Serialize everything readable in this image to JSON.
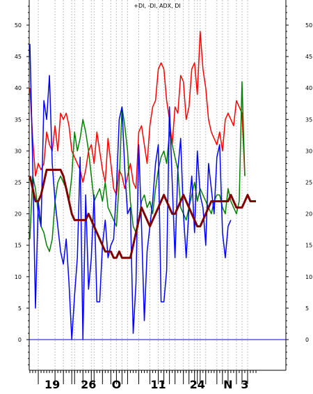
{
  "chart_data": {
    "type": "line",
    "title": "+DI, -DI, ADX, DI",
    "ylim": [
      -5,
      53
    ],
    "y_ticks": [
      0,
      5,
      10,
      15,
      20,
      25,
      30,
      35,
      40,
      45,
      50
    ],
    "grid": "vertical dotted",
    "x_labels": [
      {
        "label": "19",
        "index": 8
      },
      {
        "label": "26",
        "index": 21
      },
      {
        "label": "O",
        "index": 31
      },
      {
        "label": "11",
        "index": 46
      },
      {
        "label": "24",
        "index": 60
      },
      {
        "label": "N",
        "index": 71
      },
      {
        "label": "3",
        "index": 77
      }
    ],
    "zero_line_color": "#0000cc",
    "series": [
      {
        "color": "#ff0000",
        "role": "+DI",
        "values": [
          40,
          32,
          26,
          28,
          27,
          28,
          33,
          31,
          30,
          34,
          30,
          36,
          35,
          36,
          34,
          30,
          29,
          28,
          27,
          25,
          27,
          30,
          31,
          28,
          33,
          30,
          27,
          25,
          32,
          28,
          24,
          23,
          27,
          26,
          24,
          26,
          28,
          25,
          24,
          33,
          34,
          31,
          28,
          34,
          37,
          38,
          43,
          44,
          43,
          38,
          35,
          31,
          37,
          36,
          42,
          41,
          35,
          37,
          43,
          44,
          39,
          49,
          43,
          40,
          35,
          33,
          32,
          31,
          33,
          30,
          35,
          36,
          35,
          34,
          38,
          37,
          36,
          26
        ]
      },
      {
        "color": "#008000",
        "role": "-DI",
        "values": [
          16,
          26,
          24,
          20,
          18,
          17,
          15,
          14,
          16,
          22,
          25,
          26,
          25,
          24,
          22,
          26,
          33,
          30,
          32,
          35,
          33,
          30,
          26,
          22,
          23,
          24,
          22,
          25,
          21,
          20,
          19,
          18,
          25,
          37,
          34,
          30,
          22,
          18,
          17,
          19,
          22,
          23,
          21,
          22,
          20,
          24,
          27,
          29,
          30,
          28,
          33,
          31,
          29,
          27,
          21,
          20,
          19,
          21,
          23,
          25,
          22,
          24,
          23,
          22,
          21,
          20,
          22,
          23,
          23,
          21,
          20,
          24,
          22,
          21,
          20,
          22,
          41,
          26
        ]
      },
      {
        "color": "#0000ff",
        "role": "DI",
        "values": [
          47,
          28,
          5,
          22,
          18,
          38,
          35,
          42,
          28,
          22,
          18,
          14,
          12,
          16,
          9,
          0,
          7,
          13,
          29,
          0,
          23,
          8,
          13,
          23,
          6,
          6,
          15,
          19,
          13,
          15,
          16,
          24,
          35,
          37,
          27,
          20,
          21,
          1,
          9,
          31,
          18,
          3,
          14,
          18,
          22,
          28,
          31,
          6,
          6,
          11,
          37,
          25,
          13,
          27,
          32,
          20,
          13,
          21,
          26,
          17,
          30,
          23,
          21,
          15,
          28,
          24,
          20,
          29,
          31,
          17,
          13,
          18,
          19
        ]
      },
      {
        "color": "#800000",
        "role": "ADX",
        "values": [
          26,
          24,
          22,
          22,
          23,
          25,
          27,
          27,
          27,
          27,
          27,
          27,
          26,
          24,
          22,
          20,
          19,
          19,
          19,
          19,
          19,
          20,
          19,
          18,
          17,
          16,
          15,
          14,
          14,
          14,
          13,
          13,
          14,
          13,
          13,
          13,
          13,
          15,
          17,
          19,
          21,
          20,
          19,
          18,
          19,
          20,
          21,
          22,
          23,
          22,
          21,
          20,
          20,
          21,
          22,
          23,
          22,
          21,
          20,
          19,
          18,
          18,
          19,
          20,
          21,
          22,
          22,
          22,
          22,
          22,
          22,
          22,
          23,
          22,
          21,
          21,
          21,
          22,
          23,
          22,
          22,
          22
        ]
      }
    ]
  }
}
